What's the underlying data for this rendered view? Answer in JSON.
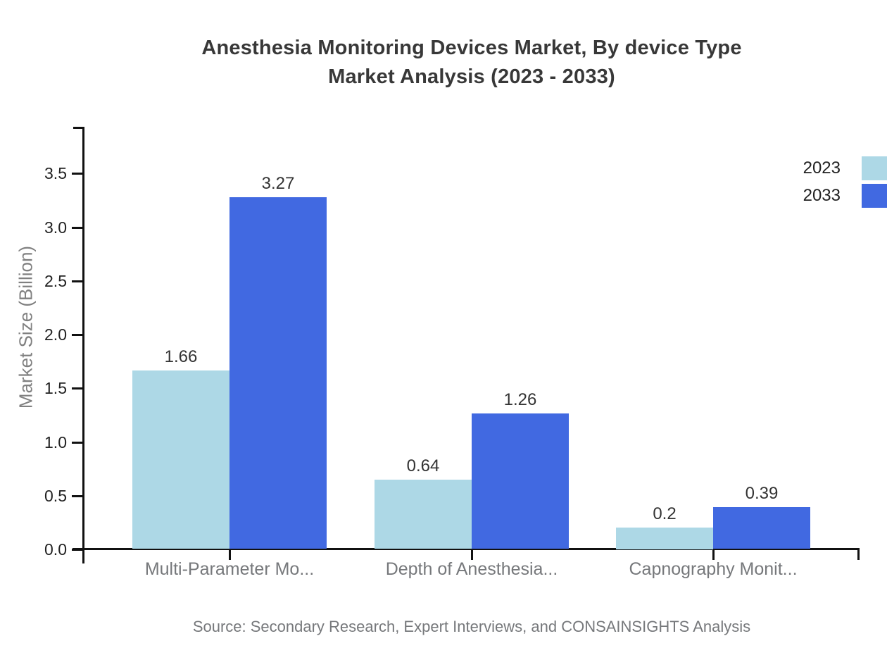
{
  "title": {
    "line1": "Anesthesia Monitoring Devices Market, By device Type",
    "line2": "Market Analysis (2023 - 2033)"
  },
  "source": {
    "text": "Source: Secondary Research, Expert Interviews, and CONSAINSIGHTS Analysis"
  },
  "colors": {
    "series_2023": "#add8e6",
    "series_2033": "#4169e1",
    "axis": "#111111",
    "title_text": "#383838",
    "muted_text": "#76787b",
    "ylabel_text": "#808080"
  },
  "chart_data": {
    "type": "bar",
    "title": "Anesthesia Monitoring Devices Market, By device Type Market Analysis (2023 - 2033)",
    "categories": [
      "Multi-Parameter Mo...",
      "Depth of Anesthesia...",
      "Capnography Monit..."
    ],
    "series": [
      {
        "name": "2023",
        "color": "#add8e6",
        "values": [
          1.66,
          0.64,
          0.2
        ],
        "labels": [
          "1.66",
          "0.64",
          "0.2"
        ]
      },
      {
        "name": "2033",
        "color": "#4169e1",
        "values": [
          3.27,
          1.26,
          0.39
        ],
        "labels": [
          "3.27",
          "1.26",
          "0.39"
        ]
      }
    ],
    "xlabel": "",
    "ylabel": "Market Size (Billion)",
    "yticks": [
      0.0,
      0.5,
      1.0,
      1.5,
      2.0,
      2.5,
      3.0,
      3.5
    ],
    "ytick_labels": [
      "0.0",
      "0.5",
      "1.0",
      "1.5",
      "2.0",
      "2.5",
      "3.0",
      "3.5"
    ],
    "ylim": [
      0,
      3.93
    ],
    "grid": false,
    "legend_position": "top-right",
    "value_labels_shown": true
  }
}
